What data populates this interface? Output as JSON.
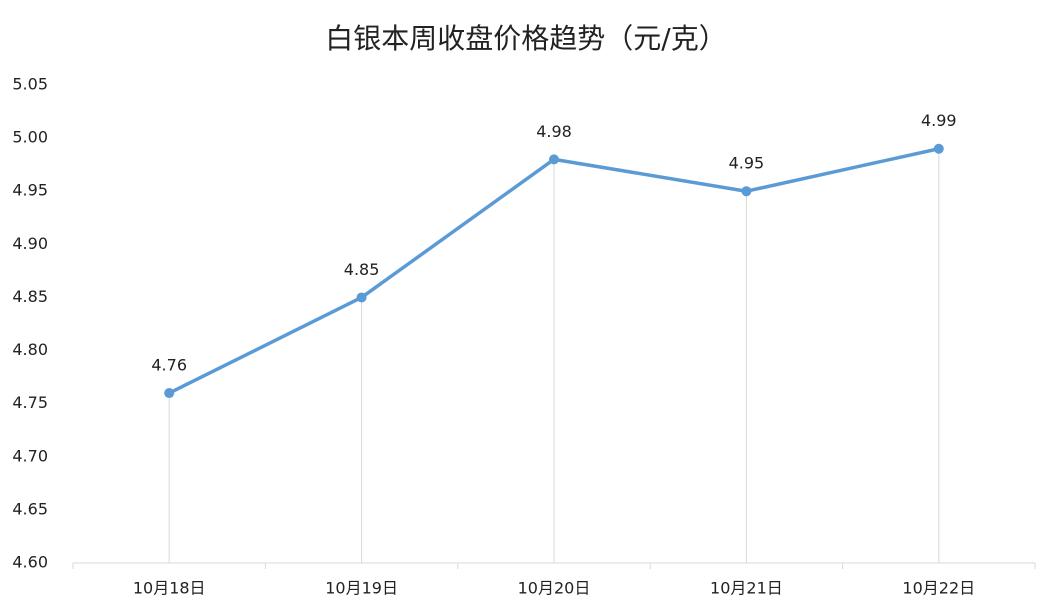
{
  "chart_data": {
    "type": "line",
    "title": "白银本周收盘价格趋势（元/克）",
    "categories": [
      "10月18日",
      "10月19日",
      "10月20日",
      "10月21日",
      "10月22日"
    ],
    "values": [
      4.76,
      4.85,
      4.98,
      4.95,
      4.99
    ],
    "color": "#5b9bd5",
    "ylim": [
      4.6,
      5.05
    ],
    "yticks": [
      {
        "value": 4.6,
        "label": "4.60"
      },
      4.65,
      {
        "value": 4.7,
        "label": "4.70"
      },
      4.75,
      {
        "value": 4.8,
        "label": "4.80"
      },
      4.85,
      {
        "value": 4.9,
        "label": "4.90"
      },
      4.95,
      {
        "value": 5.0,
        "label": "5.00"
      },
      5.05
    ],
    "drop_lines": true
  }
}
